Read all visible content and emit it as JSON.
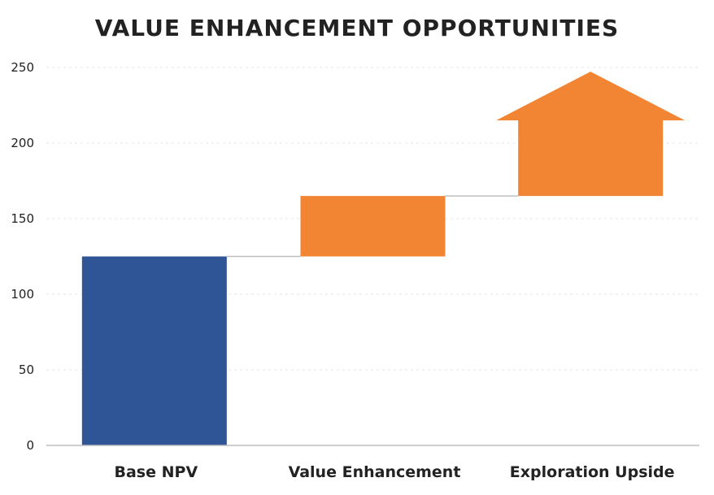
{
  "chart_data": {
    "type": "bar",
    "title": "VALUE ENHANCEMENT OPPORTUNITIES",
    "categories": [
      "Base NPV",
      "Value Enhancement",
      "Exploration Upside"
    ],
    "values": [
      125,
      40,
      50
    ],
    "cumulative_start": [
      0,
      125,
      165
    ],
    "cumulative_end": [
      125,
      165,
      215
    ],
    "ylim": [
      0,
      250
    ],
    "yticks": [
      0,
      50,
      100,
      150,
      200,
      250
    ],
    "grid": true,
    "colors": {
      "base": "#2f5597",
      "increment": "#f28533",
      "axis": "#bfbfbf",
      "grid": "#e6e6e6"
    },
    "last_bar_style": "upward-arrow"
  }
}
